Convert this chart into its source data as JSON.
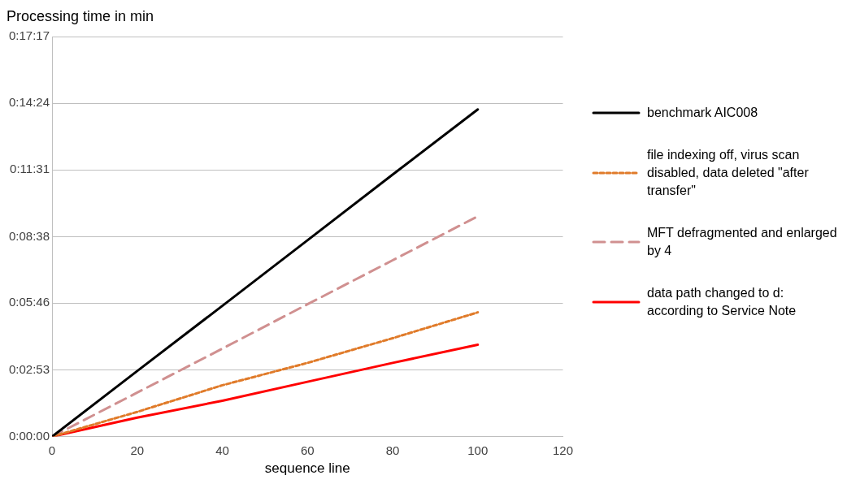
{
  "chart_data": {
    "type": "line",
    "ylabel": "Processing time in min",
    "xlabel": "sequence line",
    "x": [
      0,
      20,
      40,
      60,
      80,
      100
    ],
    "series": [
      {
        "name": "benchmark AIC008",
        "color": "#000000",
        "line_style": "solid",
        "values": [
          0,
          170,
          339,
          509,
          679,
          848
        ]
      },
      {
        "name": "file indexing off, virus scan disabled, data deleted \"after transfer\"",
        "color": "#e07b2a",
        "line_style": "dotted",
        "values": [
          0,
          64,
          133,
          191,
          255,
          322
        ]
      },
      {
        "name": "MFT defragmented and enlarged by 4",
        "color": "#d09090",
        "line_style": "dashed",
        "values": [
          0,
          114,
          228,
          343,
          457,
          571
        ]
      },
      {
        "name": "data path changed to d: according to Service Note",
        "color": "#ff0000",
        "line_style": "solid",
        "values": [
          0,
          49,
          93,
          142,
          191,
          238
        ]
      }
    ],
    "xlim": [
      0,
      120
    ],
    "xticks": [
      0,
      20,
      40,
      60,
      80,
      100,
      120
    ],
    "ylim": [
      0,
      1037
    ],
    "yticks": [
      {
        "value": 0,
        "label": "0:00:00"
      },
      {
        "value": 173,
        "label": "0:02:53"
      },
      {
        "value": 346,
        "label": "0:05:46"
      },
      {
        "value": 518,
        "label": "0:08:38"
      },
      {
        "value": 691,
        "label": "0:11:31"
      },
      {
        "value": 864,
        "label": "0:14:24"
      },
      {
        "value": 1037,
        "label": "0:17:17"
      }
    ],
    "grid": "y",
    "legend": "right",
    "marker": "none"
  }
}
